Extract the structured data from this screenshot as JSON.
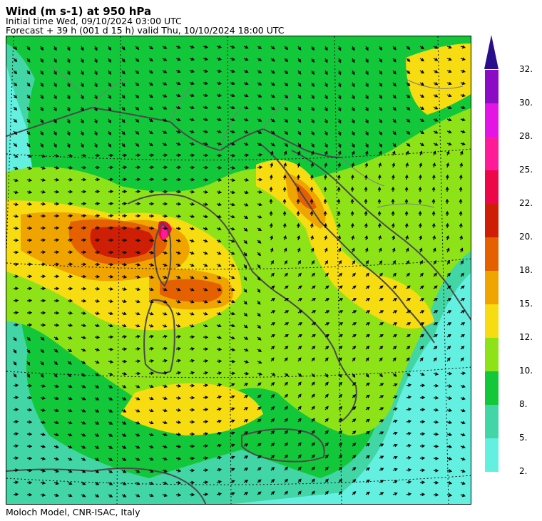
{
  "header": {
    "title": "Wind (m s-1) at 950 hPa",
    "initial_time": "Initial time  Wed, 09/10/2024  03:00 UTC",
    "forecast": "Forecast  +  39 h  (001 d 15 h)  valid Thu, 10/10/2024 18:00 UTC"
  },
  "footer": {
    "credit": "Moloch Model, CNR-ISAC, Italy"
  },
  "colorbar": {
    "top_color": "#2a0d8c",
    "levels": [
      {
        "label": "2.",
        "color": "#64f0e0"
      },
      {
        "label": "5.",
        "color": "#42d6a6"
      },
      {
        "label": "8.",
        "color": "#12c83a"
      },
      {
        "label": "10.",
        "color": "#8ee318"
      },
      {
        "label": "12.",
        "color": "#f6dc10"
      },
      {
        "label": "15.",
        "color": "#f0a400"
      },
      {
        "label": "18.",
        "color": "#e46000"
      },
      {
        "label": "20.",
        "color": "#ce1e06"
      },
      {
        "label": "22.",
        "color": "#ec0848"
      },
      {
        "label": "25.",
        "color": "#ff1a98"
      },
      {
        "label": "28.",
        "color": "#e414e4"
      },
      {
        "label": "30.",
        "color": "#8c0cc6"
      },
      {
        "label": "32.",
        "color": ""
      }
    ]
  },
  "map": {
    "background_color": "#ffffff",
    "coast_color": "#4a4a4a",
    "border_color": "#7a7a7a",
    "grid_style": "dotted"
  }
}
